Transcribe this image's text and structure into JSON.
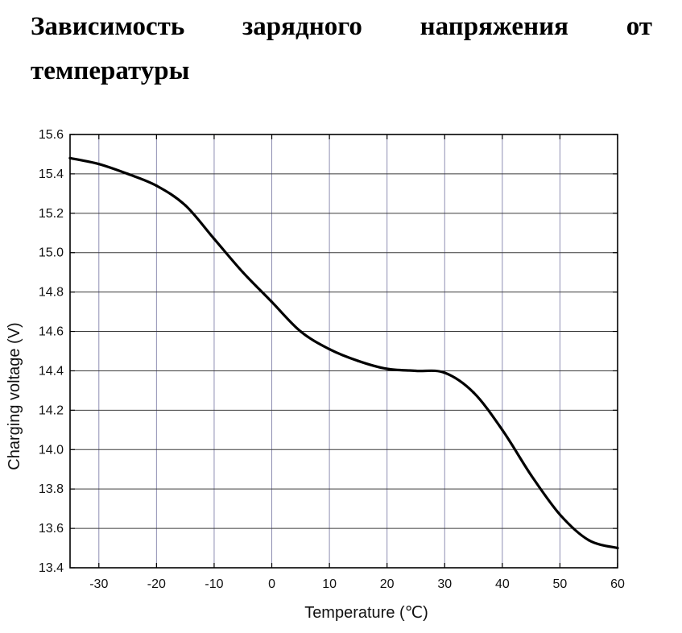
{
  "page": {
    "heading": "Зависимость зарядного напряжения от температуры"
  },
  "chart_data": {
    "type": "line",
    "title": "",
    "xlabel": "Temperature (℃)",
    "ylabel": "Charging voltage (V)",
    "xlim": [
      -35,
      60
    ],
    "ylim": [
      13.4,
      15.6
    ],
    "x_ticks": [
      -30,
      -20,
      -10,
      0,
      10,
      20,
      30,
      40,
      50,
      60
    ],
    "y_ticks": [
      13.4,
      13.6,
      13.8,
      14.0,
      14.2,
      14.4,
      14.6,
      14.8,
      15.0,
      15.2,
      15.4,
      15.6
    ],
    "y_tick_labels": [
      "13.4",
      "13.6",
      "13.8",
      "14.0",
      "14.2",
      "14.4",
      "14.6",
      "14.8",
      "15.0",
      "15.2",
      "15.4",
      "15.6"
    ],
    "grid": true,
    "series": [
      {
        "x": [
          -35,
          -30,
          -25,
          -20,
          -15,
          -10,
          -5,
          0,
          5,
          10,
          15,
          20,
          25,
          30,
          35,
          40,
          45,
          50,
          55,
          60
        ],
        "y": [
          15.48,
          15.45,
          15.4,
          15.34,
          15.24,
          15.07,
          14.9,
          14.75,
          14.6,
          14.51,
          14.45,
          14.41,
          14.4,
          14.39,
          14.29,
          14.1,
          13.87,
          13.67,
          13.54,
          13.5
        ],
        "color": "#000000"
      }
    ]
  }
}
